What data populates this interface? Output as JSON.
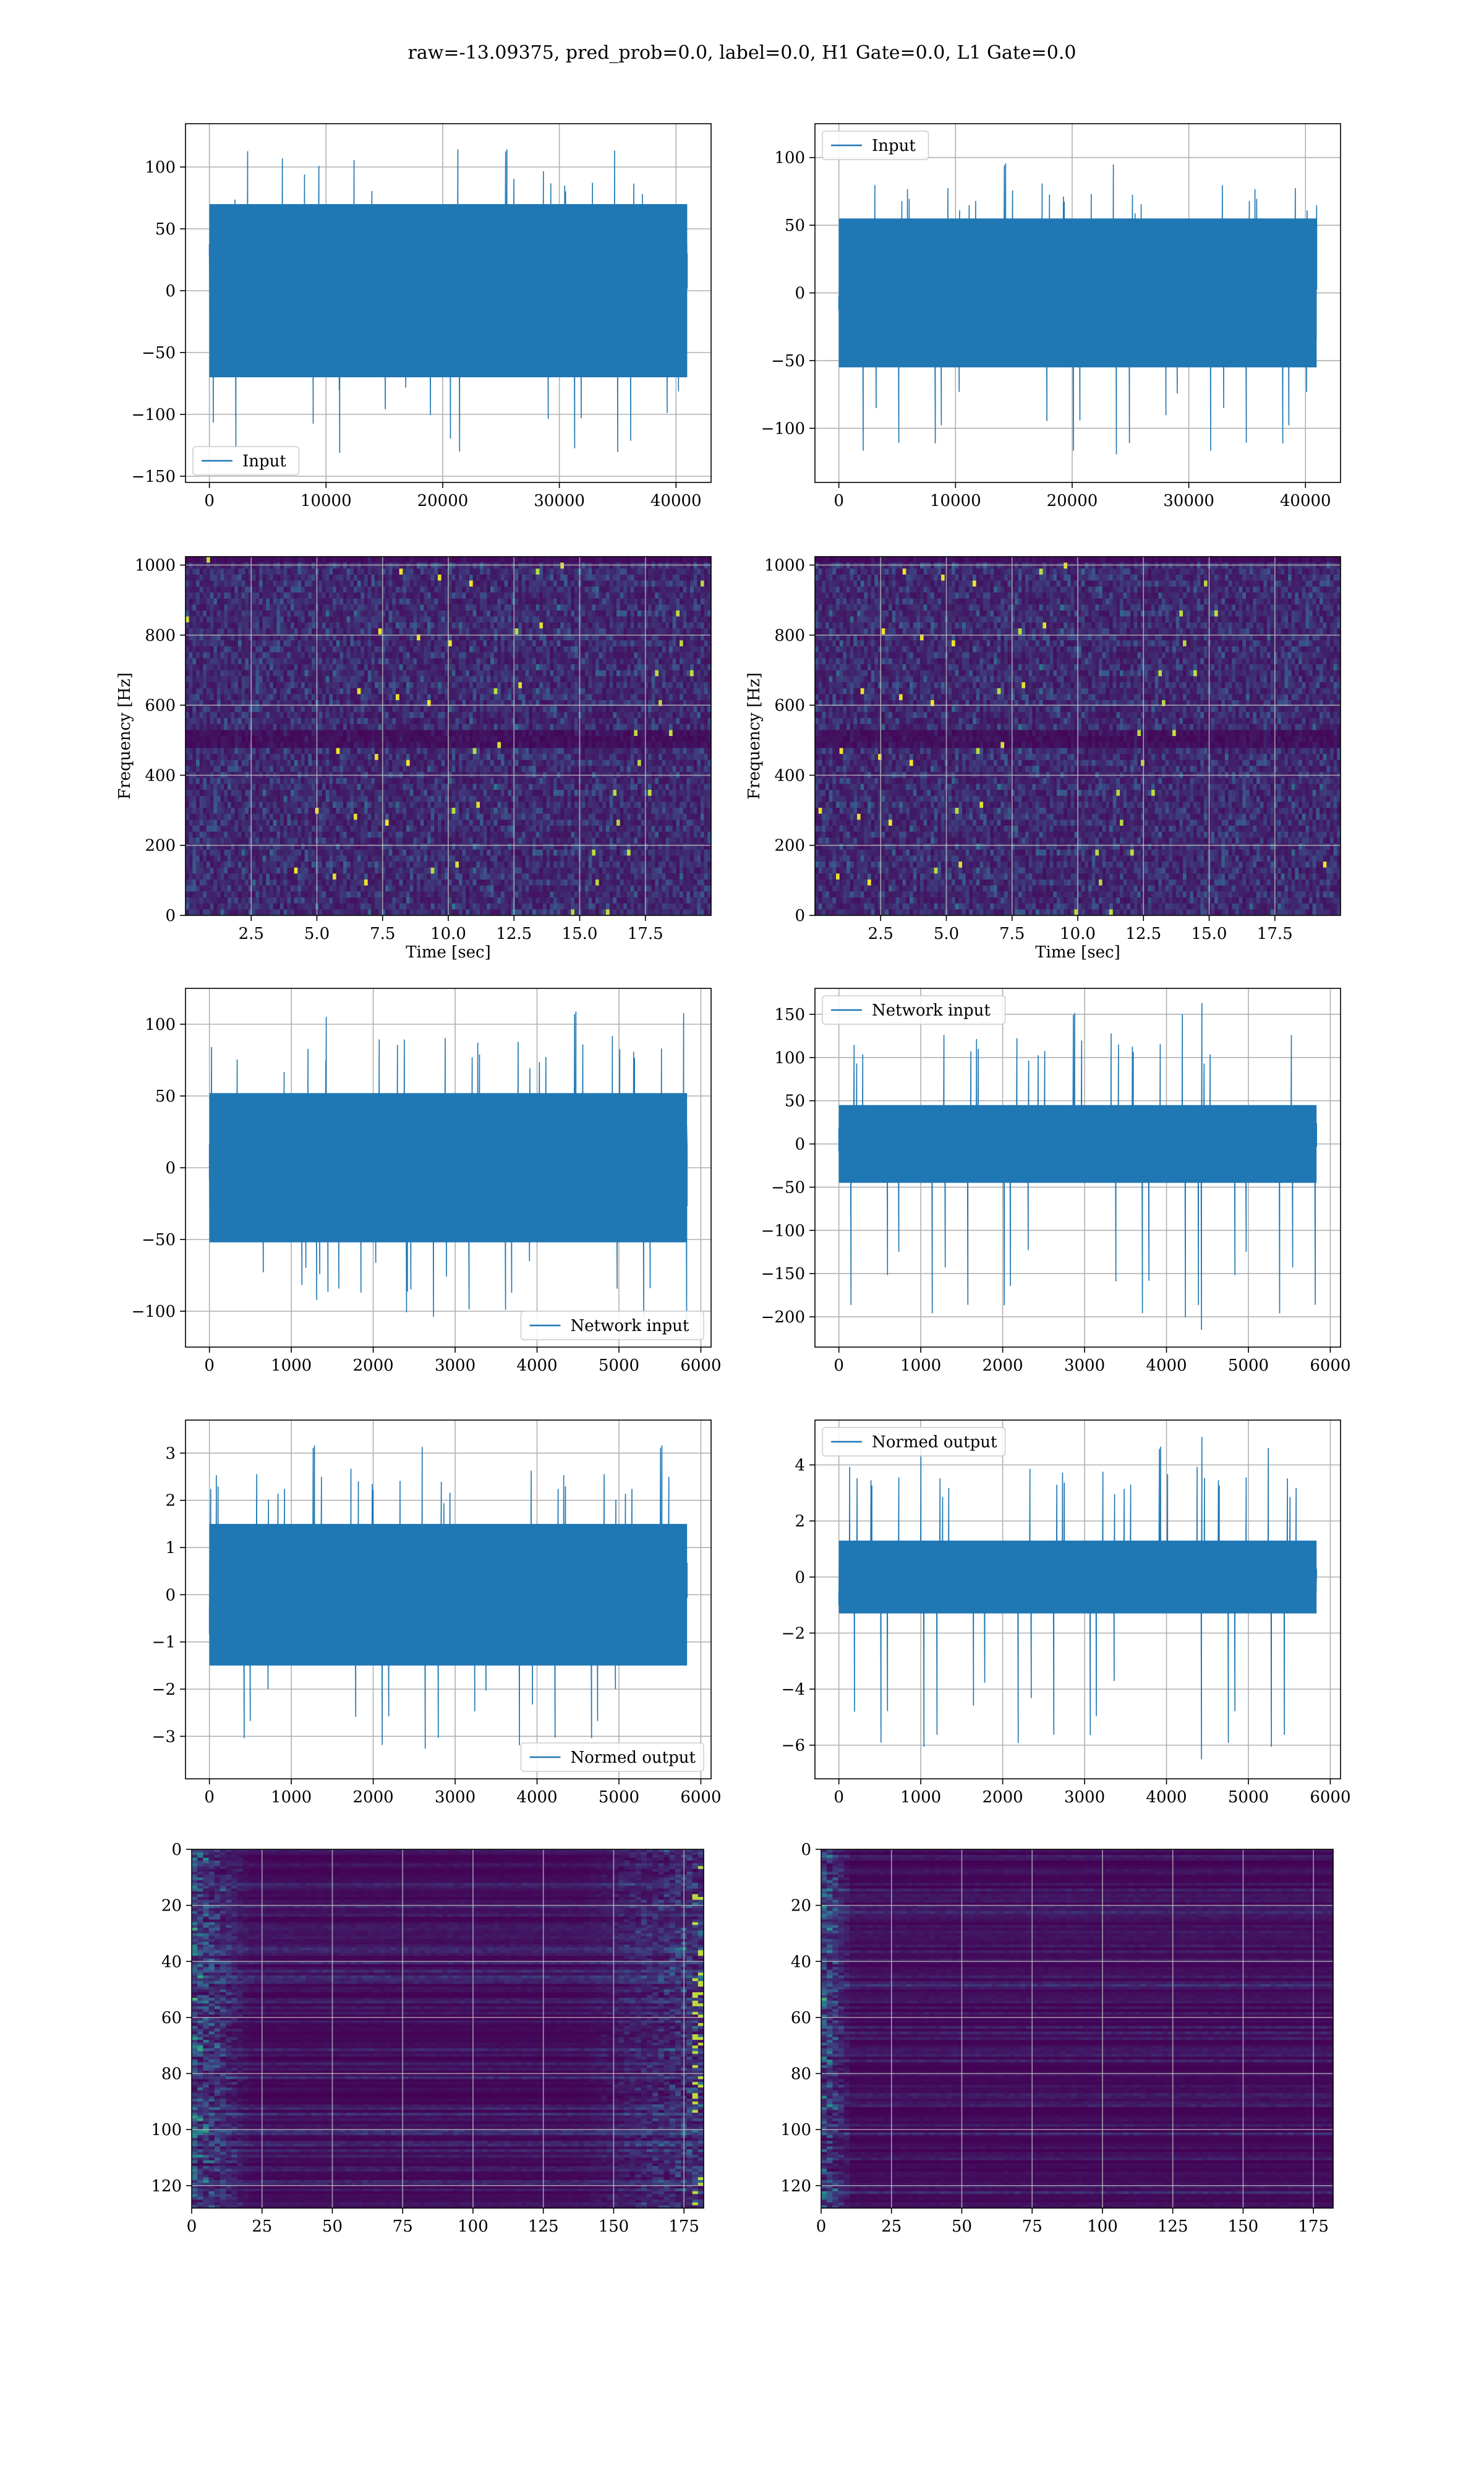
{
  "suptitle": "raw=-13.09375, pred_prob=0.0, label=0.0, H1 Gate=0.0, L1 Gate=0.0",
  "colors": {
    "line": "#1f77b4",
    "grid": "#b0b0b0",
    "viridis_dark": "#440154",
    "viridis_mid": "#21918c",
    "viridis_bright": "#fde725"
  },
  "chart_data": [
    {
      "id": "input-h1",
      "type": "line",
      "xlim": [
        -2048,
        43008
      ],
      "ylim": [
        -155,
        135
      ],
      "xticks": [
        0,
        10000,
        20000,
        30000,
        40000
      ],
      "yticks": [
        -150,
        -100,
        -50,
        0,
        50,
        100
      ],
      "xtick_labels": [
        "0",
        "10000",
        "20000",
        "30000",
        "40000"
      ],
      "ytick_labels": [
        "−150",
        "−100",
        "−50",
        "0",
        "50",
        "100"
      ],
      "grid": true,
      "series": [
        {
          "name": "Input",
          "x_range": [
            0,
            40960
          ],
          "band": [
            -70,
            70
          ],
          "peaks": [
            -140,
            123
          ]
        }
      ],
      "legend": "lower left"
    },
    {
      "id": "input-l1",
      "type": "line",
      "xlim": [
        -2048,
        43008
      ],
      "ylim": [
        -140,
        125
      ],
      "xticks": [
        0,
        10000,
        20000,
        30000,
        40000
      ],
      "yticks": [
        -100,
        -50,
        0,
        50,
        100
      ],
      "xtick_labels": [
        "0",
        "10000",
        "20000",
        "30000",
        "40000"
      ],
      "ytick_labels": [
        "−100",
        "−50",
        "0",
        "50",
        "100"
      ],
      "grid": true,
      "series": [
        {
          "name": "Input",
          "x_range": [
            0,
            40960
          ],
          "band": [
            -55,
            55
          ],
          "peaks": [
            -128,
            103
          ]
        }
      ],
      "legend": "upper left"
    },
    {
      "id": "spectrogram-h1",
      "type": "heatmap",
      "xlabel": "Time [sec]",
      "ylabel": "Frequency [Hz]",
      "xlim": [
        0,
        20
      ],
      "ylim": [
        0,
        1024
      ],
      "xticks": [
        2.5,
        5.0,
        7.5,
        10.0,
        12.5,
        15.0,
        17.5
      ],
      "yticks": [
        0,
        200,
        400,
        600,
        800,
        1000
      ],
      "xtick_labels": [
        "2.5",
        "5.0",
        "7.5",
        "10.0",
        "12.5",
        "15.0",
        "17.5"
      ],
      "ytick_labels": [
        "0",
        "200",
        "400",
        "600",
        "800",
        "1000"
      ],
      "grid": true,
      "colormap": "viridis"
    },
    {
      "id": "spectrogram-l1",
      "type": "heatmap",
      "xlabel": "Time [sec]",
      "ylabel": "Frequency [Hz]",
      "xlim": [
        0,
        20
      ],
      "ylim": [
        0,
        1024
      ],
      "xticks": [
        2.5,
        5.0,
        7.5,
        10.0,
        12.5,
        15.0,
        17.5
      ],
      "yticks": [
        0,
        200,
        400,
        600,
        800,
        1000
      ],
      "xtick_labels": [
        "2.5",
        "5.0",
        "7.5",
        "10.0",
        "12.5",
        "15.0",
        "17.5"
      ],
      "ytick_labels": [
        "0",
        "200",
        "400",
        "600",
        "800",
        "1000"
      ],
      "grid": true,
      "colormap": "viridis"
    },
    {
      "id": "network-input-h1",
      "type": "line",
      "xlim": [
        -292,
        6125
      ],
      "ylim": [
        -125,
        125
      ],
      "xticks": [
        0,
        1000,
        2000,
        3000,
        4000,
        5000,
        6000
      ],
      "yticks": [
        -100,
        -50,
        0,
        50,
        100
      ],
      "xtick_labels": [
        "0",
        "1000",
        "2000",
        "3000",
        "4000",
        "5000",
        "6000"
      ],
      "ytick_labels": [
        "−100",
        "−50",
        "0",
        "50",
        "100"
      ],
      "grid": true,
      "series": [
        {
          "name": "Network input",
          "x_range": [
            0,
            5832
          ],
          "band": [
            -52,
            52
          ],
          "peaks": [
            -114,
            117
          ]
        }
      ],
      "legend": "lower right"
    },
    {
      "id": "network-input-l1",
      "type": "line",
      "xlim": [
        -292,
        6125
      ],
      "ylim": [
        -235,
        180
      ],
      "xticks": [
        0,
        1000,
        2000,
        3000,
        4000,
        5000,
        6000
      ],
      "yticks": [
        -200,
        -150,
        -100,
        -50,
        0,
        50,
        100,
        150
      ],
      "xtick_labels": [
        "0",
        "1000",
        "2000",
        "3000",
        "4000",
        "5000",
        "6000"
      ],
      "ytick_labels": [
        "−200",
        "−150",
        "−100",
        "−50",
        "0",
        "50",
        "100",
        "150"
      ],
      "grid": true,
      "series": [
        {
          "name": "Network input",
          "x_range": [
            0,
            5832
          ],
          "band": [
            -45,
            45
          ],
          "peaks": [
            -215,
            163
          ],
          "spike_x": 4430
        }
      ],
      "legend": "upper left"
    },
    {
      "id": "normed-output-h1",
      "type": "line",
      "xlim": [
        -292,
        6125
      ],
      "ylim": [
        -3.9,
        3.7
      ],
      "xticks": [
        0,
        1000,
        2000,
        3000,
        4000,
        5000,
        6000
      ],
      "yticks": [
        -3,
        -2,
        -1,
        0,
        1,
        2,
        3
      ],
      "xtick_labels": [
        "0",
        "1000",
        "2000",
        "3000",
        "4000",
        "5000",
        "6000"
      ],
      "ytick_labels": [
        "−3",
        "−2",
        "−1",
        "0",
        "1",
        "2",
        "3"
      ],
      "grid": true,
      "series": [
        {
          "name": "Normed output",
          "x_range": [
            0,
            5832
          ],
          "band": [
            -1.5,
            1.5
          ],
          "peaks": [
            -3.5,
            3.4
          ]
        }
      ],
      "legend": "lower right"
    },
    {
      "id": "normed-output-l1",
      "type": "line",
      "xlim": [
        -292,
        6125
      ],
      "ylim": [
        -7.2,
        5.6
      ],
      "xticks": [
        0,
        1000,
        2000,
        3000,
        4000,
        5000,
        6000
      ],
      "yticks": [
        -6,
        -4,
        -2,
        0,
        2,
        4
      ],
      "xtick_labels": [
        "0",
        "1000",
        "2000",
        "3000",
        "4000",
        "5000",
        "6000"
      ],
      "ytick_labels": [
        "−6",
        "−4",
        "−2",
        "0",
        "2",
        "4"
      ],
      "grid": true,
      "series": [
        {
          "name": "Normed output",
          "x_range": [
            0,
            5832
          ],
          "band": [
            -1.3,
            1.3
          ],
          "peaks": [
            -6.5,
            5.0
          ],
          "spike_x": 4430
        }
      ],
      "legend": "upper left"
    },
    {
      "id": "feature-map-h1",
      "type": "heatmap",
      "xlim": [
        0,
        182
      ],
      "ylim": [
        128,
        0
      ],
      "xticks": [
        0,
        25,
        50,
        75,
        100,
        125,
        150,
        175
      ],
      "yticks": [
        0,
        20,
        40,
        60,
        80,
        100,
        120
      ],
      "xtick_labels": [
        "0",
        "25",
        "50",
        "75",
        "100",
        "125",
        "150",
        "175"
      ],
      "ytick_labels": [
        "0",
        "20",
        "40",
        "60",
        "80",
        "100",
        "120"
      ],
      "grid": true,
      "colormap": "viridis"
    },
    {
      "id": "feature-map-l1",
      "type": "heatmap",
      "xlim": [
        0,
        182
      ],
      "ylim": [
        128,
        0
      ],
      "xticks": [
        0,
        25,
        50,
        75,
        100,
        125,
        150,
        175
      ],
      "yticks": [
        0,
        20,
        40,
        60,
        80,
        100,
        120
      ],
      "xtick_labels": [
        "0",
        "25",
        "50",
        "75",
        "100",
        "125",
        "150",
        "175"
      ],
      "ytick_labels": [
        "0",
        "20",
        "40",
        "60",
        "80",
        "100",
        "120"
      ],
      "grid": true,
      "colormap": "viridis"
    }
  ]
}
